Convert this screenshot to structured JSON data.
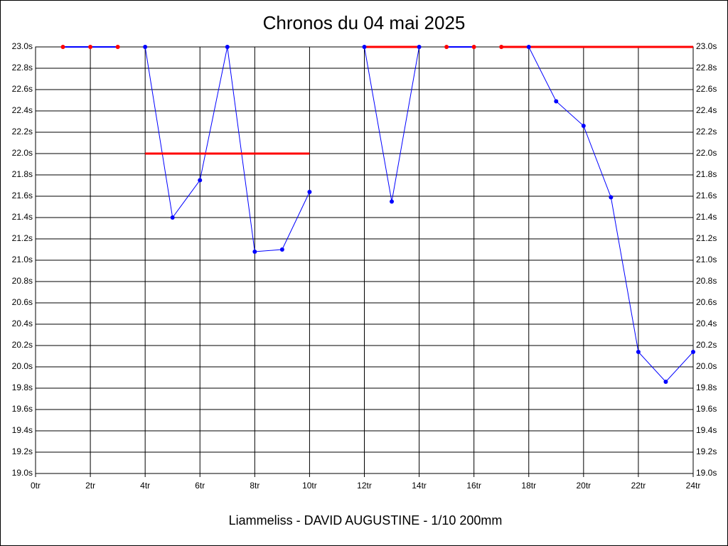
{
  "chart_data": {
    "type": "line",
    "title": "Chronos du 04 mai 2025",
    "footer": "Liammeliss - DAVID AUGUSTINE - 1/10 200mm",
    "xlim": [
      0,
      24
    ],
    "xticks": [
      {
        "value": 0,
        "label": "0tr"
      },
      {
        "value": 2,
        "label": "2tr"
      },
      {
        "value": 4,
        "label": "4tr"
      },
      {
        "value": 6,
        "label": "6tr"
      },
      {
        "value": 8,
        "label": "8tr"
      },
      {
        "value": 10,
        "label": "10tr"
      },
      {
        "value": 12,
        "label": "12tr"
      },
      {
        "value": 14,
        "label": "14tr"
      },
      {
        "value": 16,
        "label": "16tr"
      },
      {
        "value": 18,
        "label": "18tr"
      },
      {
        "value": 20,
        "label": "20tr"
      },
      {
        "value": 22,
        "label": "22tr"
      },
      {
        "value": 24,
        "label": "24tr"
      }
    ],
    "ylim": [
      19.0,
      23.0
    ],
    "yticks": [
      {
        "value": 19.0,
        "label": "19.0s"
      },
      {
        "value": 19.2,
        "label": "19.2s"
      },
      {
        "value": 19.4,
        "label": "19.4s"
      },
      {
        "value": 19.6,
        "label": "19.6s"
      },
      {
        "value": 19.8,
        "label": "19.8s"
      },
      {
        "value": 20.0,
        "label": "20.0s"
      },
      {
        "value": 20.2,
        "label": "20.2s"
      },
      {
        "value": 20.4,
        "label": "20.4s"
      },
      {
        "value": 20.6,
        "label": "20.6s"
      },
      {
        "value": 20.8,
        "label": "20.8s"
      },
      {
        "value": 21.0,
        "label": "21.0s"
      },
      {
        "value": 21.2,
        "label": "21.2s"
      },
      {
        "value": 21.4,
        "label": "21.4s"
      },
      {
        "value": 21.6,
        "label": "21.6s"
      },
      {
        "value": 21.8,
        "label": "21.8s"
      },
      {
        "value": 22.0,
        "label": "22.0s"
      },
      {
        "value": 22.2,
        "label": "22.2s"
      },
      {
        "value": 22.4,
        "label": "22.4s"
      },
      {
        "value": 22.6,
        "label": "22.6s"
      },
      {
        "value": 22.8,
        "label": "22.8s"
      },
      {
        "value": 23.0,
        "label": "23.0s"
      }
    ],
    "grid": true,
    "series": [
      {
        "color": "#0000ff",
        "line_width": 2,
        "x": [
          1,
          2,
          3
        ],
        "values": [
          23.0,
          23.0,
          23.0
        ],
        "marker_colors": [
          "#ff0000",
          "#ff0000",
          "#ff0000"
        ]
      },
      {
        "color": "#0000ff",
        "line_width": 1,
        "x": [
          4,
          5,
          6,
          7,
          8,
          9,
          10
        ],
        "values": [
          23.0,
          21.4,
          21.75,
          23.0,
          21.08,
          21.1,
          21.64
        ],
        "marker_colors": [
          "#0000ff",
          "#0000ff",
          "#0000ff",
          "#0000ff",
          "#0000ff",
          "#0000ff",
          "#0000ff"
        ]
      },
      {
        "color": "#0000ff",
        "line_width": 1,
        "x": [
          12,
          13,
          14
        ],
        "values": [
          23.0,
          21.55,
          23.0
        ],
        "marker_colors": [
          "#0000ff",
          "#0000ff",
          "#0000ff"
        ]
      },
      {
        "color": "#0000ff",
        "line_width": 2,
        "x": [
          15,
          16
        ],
        "values": [
          23.0,
          23.0
        ],
        "marker_colors": [
          "#ff0000",
          "#ff0000"
        ]
      },
      {
        "color": "#0000ff",
        "line_width": 1,
        "x": [
          17,
          18,
          19,
          20,
          21,
          22,
          23,
          24
        ],
        "values": [
          23.0,
          23.0,
          22.49,
          22.26,
          21.59,
          20.14,
          19.86,
          20.14
        ],
        "marker_colors": [
          "#ff0000",
          "#0000ff",
          "#0000ff",
          "#0000ff",
          "#0000ff",
          "#0000ff",
          "#0000ff",
          "#0000ff"
        ]
      },
      {
        "color": "#ff0000",
        "line_width": 3,
        "x": [
          4,
          10
        ],
        "values": [
          22.0,
          22.0
        ]
      },
      {
        "color": "#ff0000",
        "line_width": 3,
        "x": [
          12,
          14
        ],
        "values": [
          23.0,
          23.0
        ]
      },
      {
        "color": "#ff0000",
        "line_width": 3,
        "x": [
          17,
          24
        ],
        "values": [
          23.0,
          23.0
        ]
      }
    ]
  }
}
